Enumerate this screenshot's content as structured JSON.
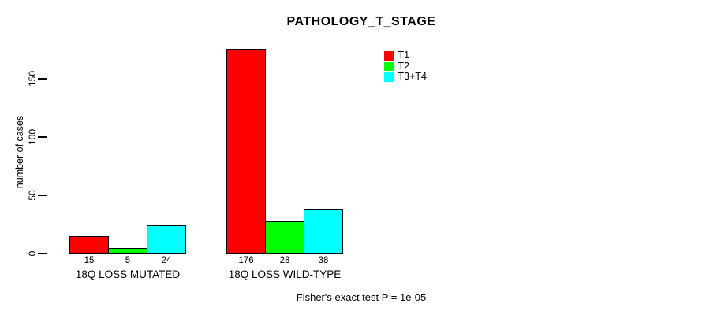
{
  "chart_data": {
    "type": "bar",
    "title": "PATHOLOGY_T_STAGE",
    "ylabel": "number of cases",
    "xlabel": "",
    "categories": [
      "18Q LOSS MUTATED",
      "18Q LOSS WILD-TYPE"
    ],
    "series": [
      {
        "name": "T1",
        "color": "#ff0000",
        "values": [
          15,
          176
        ]
      },
      {
        "name": "T2",
        "color": "#00ff00",
        "values": [
          5,
          28
        ]
      },
      {
        "name": "T3+T4",
        "color": "#00ffff",
        "values": [
          24,
          38
        ]
      }
    ],
    "bar_value_labels": [
      [
        "15",
        "5",
        "24"
      ],
      [
        "176",
        "28",
        "38"
      ]
    ],
    "ylim": [
      0,
      150
    ],
    "yticks": [
      "0",
      "50",
      "100",
      "150"
    ],
    "grid": false,
    "legend_position": "top-right",
    "annotation": "Fisher's exact test P = 1e-05",
    "text_color": "#000000",
    "background_color": "#ffffff"
  }
}
